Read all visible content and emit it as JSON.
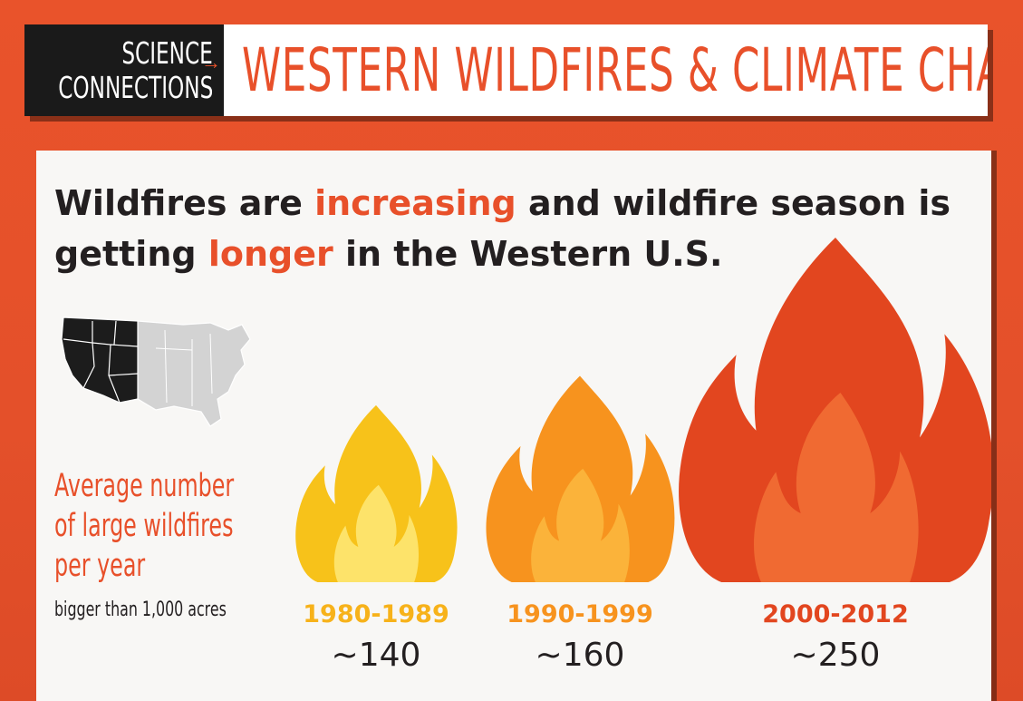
{
  "header": {
    "badge_line1": "SCIENCE",
    "badge_line2": "CONNECTIONS",
    "title": "WESTERN WILDFIRES & CLIMATE CHANGE"
  },
  "headline": {
    "part1": "Wildfires are ",
    "highlight1": "increasing",
    "part2": " and wildfire season is getting ",
    "highlight2": "longer",
    "part3": " in the Western U.S."
  },
  "description": {
    "line1": "Average number",
    "line2": "of large wildfires",
    "line3": "per year",
    "subtext": "bigger than 1,000 acres"
  },
  "colors": {
    "background": "#e9532b",
    "accent": "#e8502a",
    "dark": "#231f20",
    "flame_1980s": "#f7c21a",
    "flame_1990s": "#f7931e",
    "flame_2000s": "#e2461f"
  },
  "chart_data": {
    "type": "bar",
    "categories": [
      "1980-1989",
      "1990-1999",
      "2000-2012"
    ],
    "values": [
      140,
      160,
      250
    ],
    "value_labels": [
      "~140",
      "~160",
      "~250"
    ],
    "title": "Average number of large wildfires per year",
    "subtitle": "bigger than 1,000 acres"
  }
}
